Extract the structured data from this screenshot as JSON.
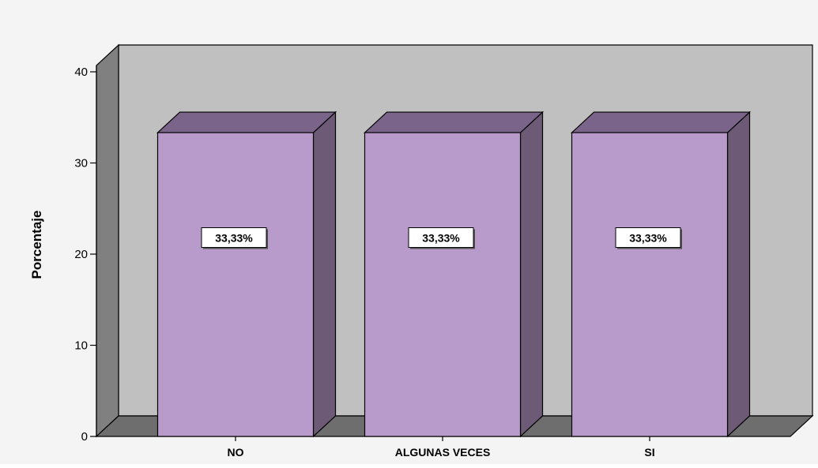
{
  "colors": {
    "background": "#f4f4f4",
    "back_wall": "#c0c0c0",
    "side_wall": "#808080",
    "floor": "#6e6e6e",
    "bar_front": "#b89bcb",
    "bar_side": "#6c5a76",
    "bar_top": "#7b6489",
    "label_box": "#ffffff"
  },
  "chart_data": {
    "type": "bar",
    "style": "3d",
    "categories": [
      "NO",
      "ALGUNAS VECES",
      "SI"
    ],
    "values": [
      33.33,
      33.33,
      33.33
    ],
    "data_labels": [
      "33,33%",
      "33,33%",
      "33,33%"
    ],
    "ylabel": "Porcentaje",
    "xlabel": "",
    "ylim": [
      0,
      40
    ],
    "yticks": [
      0,
      10,
      20,
      30,
      40
    ],
    "ytick_labels": [
      "0",
      "10",
      "20",
      "30",
      "40"
    ],
    "grid": false,
    "legend": "none"
  }
}
